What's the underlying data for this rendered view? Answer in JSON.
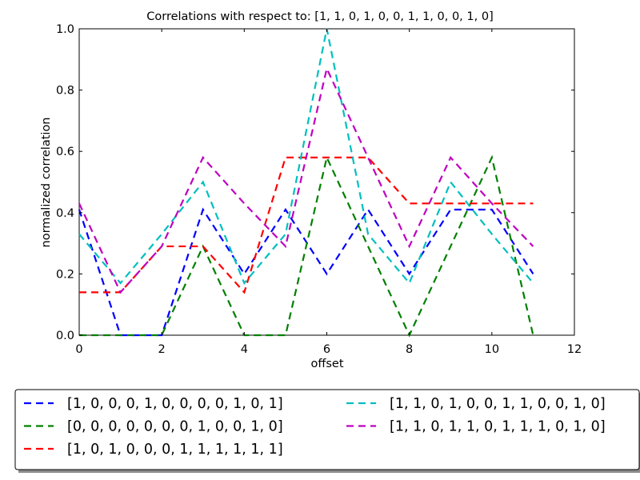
{
  "chart_data": {
    "type": "line",
    "title": "Correlations with respect to: [1, 1, 0, 1, 0, 0, 1, 1, 0, 0, 1, 0]",
    "xlabel": "offset",
    "ylabel": "normalized correlation",
    "xlim": [
      0,
      12
    ],
    "ylim": [
      0,
      1.0
    ],
    "xticks": [
      "0",
      "2",
      "4",
      "6",
      "8",
      "10",
      "12"
    ],
    "yticks": [
      "0.0",
      "0.2",
      "0.4",
      "0.6",
      "0.8",
      "1.0"
    ],
    "x": [
      0,
      1,
      2,
      3,
      4,
      5,
      6,
      7,
      8,
      9,
      10,
      11
    ],
    "grid": false,
    "legend_placement": "below",
    "series": [
      {
        "name": "[1, 0, 0, 0, 1, 0, 0, 0, 0, 1, 0, 1]",
        "color": "#0000ff",
        "values": [
          0.41,
          0.0,
          0.0,
          0.41,
          0.2,
          0.41,
          0.2,
          0.41,
          0.2,
          0.41,
          0.41,
          0.2
        ]
      },
      {
        "name": "[0, 0, 0, 0, 0, 0, 0, 1, 0, 0, 1, 0]",
        "color": "#008000",
        "values": [
          0.0,
          0.0,
          0.0,
          0.29,
          0.0,
          0.0,
          0.58,
          0.29,
          0.0,
          0.29,
          0.58,
          0.0
        ]
      },
      {
        "name": "[1, 0, 1, 0, 0, 0, 1, 1, 1, 1, 1, 1]",
        "color": "#ff0000",
        "values": [
          0.14,
          0.14,
          0.29,
          0.29,
          0.14,
          0.58,
          0.58,
          0.58,
          0.43,
          0.43,
          0.43,
          0.43
        ]
      },
      {
        "name": "[1, 1, 0, 1, 0, 0, 1, 1, 0, 0, 1, 0]",
        "color": "#00bfbf",
        "values": [
          0.33,
          0.17,
          0.33,
          0.5,
          0.17,
          0.33,
          1.0,
          0.33,
          0.17,
          0.5,
          0.33,
          0.17
        ]
      },
      {
        "name": "[1, 1, 0, 1, 1, 0, 1, 1, 1, 0, 1, 0]",
        "color": "#bf00bf",
        "values": [
          0.43,
          0.14,
          0.29,
          0.58,
          0.43,
          0.29,
          0.87,
          0.58,
          0.29,
          0.58,
          0.43,
          0.29
        ]
      }
    ]
  }
}
